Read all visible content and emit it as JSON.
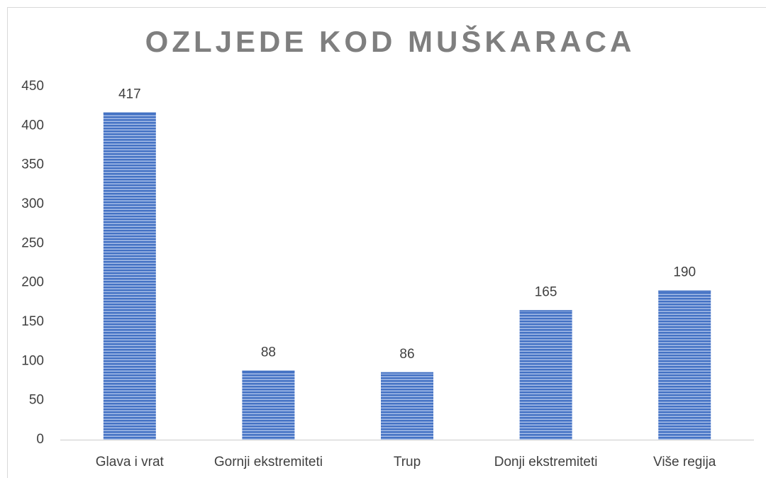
{
  "chart_data": {
    "type": "bar",
    "title": "OZLJEDE KOD MUŠKARACA",
    "categories": [
      "Glava i vrat",
      "Gornji ekstremiteti",
      "Trup",
      "Donji ekstremiteti",
      "Više regija"
    ],
    "values": [
      417,
      88,
      86,
      165,
      190
    ],
    "color": "#4472c4",
    "ylim": [
      0,
      450
    ],
    "yticks": [
      0,
      50,
      100,
      150,
      200,
      250,
      300,
      350,
      400,
      450
    ],
    "grid": false
  }
}
